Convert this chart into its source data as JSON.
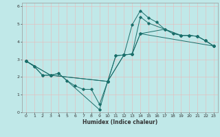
{
  "xlabel": "Humidex (Indice chaleur)",
  "background_color": "#c0e8e8",
  "grid_color": "#e8b8b8",
  "line_color": "#1a6e6a",
  "xlim": [
    -0.5,
    23.5
  ],
  "ylim": [
    0,
    6.2
  ],
  "yticks": [
    0,
    1,
    2,
    3,
    4,
    5,
    6
  ],
  "xticks": [
    0,
    1,
    2,
    3,
    4,
    5,
    6,
    7,
    8,
    9,
    10,
    11,
    12,
    13,
    14,
    15,
    16,
    17,
    18,
    19,
    20,
    21,
    22,
    23
  ],
  "series": [
    {
      "x": [
        0,
        1,
        2,
        3,
        4,
        5,
        6,
        7,
        8,
        9,
        10,
        11,
        12,
        13,
        14,
        15,
        16,
        17,
        18,
        19,
        20,
        21,
        22,
        23
      ],
      "y": [
        2.9,
        2.6,
        2.1,
        2.1,
        2.2,
        1.8,
        1.5,
        1.3,
        1.3,
        0.45,
        1.75,
        3.2,
        3.25,
        4.95,
        5.75,
        5.35,
        5.1,
        4.7,
        4.45,
        4.35,
        4.35,
        4.3,
        4.05,
        3.75
      ]
    },
    {
      "x": [
        0,
        1,
        2,
        3,
        4,
        9,
        10,
        11,
        12,
        13,
        14,
        15,
        19,
        20,
        21,
        22,
        23
      ],
      "y": [
        2.9,
        2.6,
        2.1,
        2.1,
        2.2,
        0.15,
        1.75,
        3.2,
        3.25,
        3.3,
        5.4,
        5.05,
        4.35,
        4.35,
        4.3,
        4.05,
        3.75
      ]
    },
    {
      "x": [
        0,
        3,
        10,
        12,
        13,
        14,
        17,
        19,
        20,
        21,
        22,
        23
      ],
      "y": [
        2.9,
        2.1,
        1.75,
        3.25,
        3.3,
        4.45,
        4.7,
        4.35,
        4.35,
        4.3,
        4.05,
        3.75
      ]
    },
    {
      "x": [
        0,
        3,
        10,
        12,
        13,
        14,
        23
      ],
      "y": [
        2.9,
        2.1,
        1.75,
        3.25,
        3.3,
        4.45,
        3.75
      ]
    }
  ]
}
